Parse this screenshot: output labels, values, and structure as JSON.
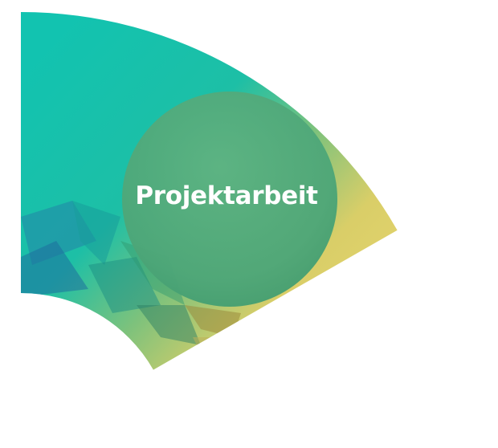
{
  "center_label": "Projektarbeit",
  "colors": {
    "teal": "#12C3B0",
    "teal_deep": "#1AA39A",
    "blue_facet": "#2384A8",
    "green_mid": "#6FBF7A",
    "yellow": "#E3D266",
    "yellow_light": "#EAD97A",
    "olive_facet": "#9A8A3C",
    "circle": "#4FA97A",
    "background": "#FFFFFF",
    "label": "#FFFFFF"
  }
}
